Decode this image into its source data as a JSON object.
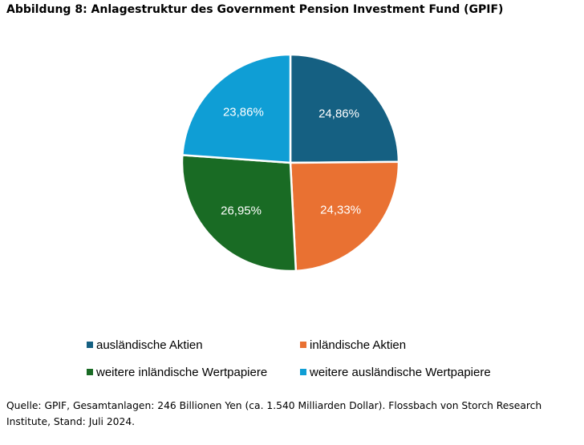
{
  "figure_title": "Abbildung 8: Anlagestruktur des Government Pension Investment Fund (GPIF)",
  "source_note": "Quelle: GPIF, Gesamtanlagen: 246 Billionen Yen (ca. 1.540 Milliarden Dollar). Flossbach von Storch Research Institute, Stand: Juli 2024.",
  "chart_data": {
    "type": "pie",
    "title": "",
    "unit": "%",
    "legend_position": "bottom",
    "slices": [
      {
        "label": "ausländische Aktien",
        "value": 24.86,
        "value_label": "24,86%",
        "color": "#156082"
      },
      {
        "label": "inländische Aktien",
        "value": 24.33,
        "value_label": "24,33%",
        "color": "#E97132"
      },
      {
        "label": "weitere inländische Wertpapiere",
        "value": 26.95,
        "value_label": "26,95%",
        "color": "#196B24"
      },
      {
        "label": "weitere ausländische Wertpapiere",
        "value": 23.86,
        "value_label": "23,86%",
        "color": "#0F9ED5"
      }
    ]
  }
}
